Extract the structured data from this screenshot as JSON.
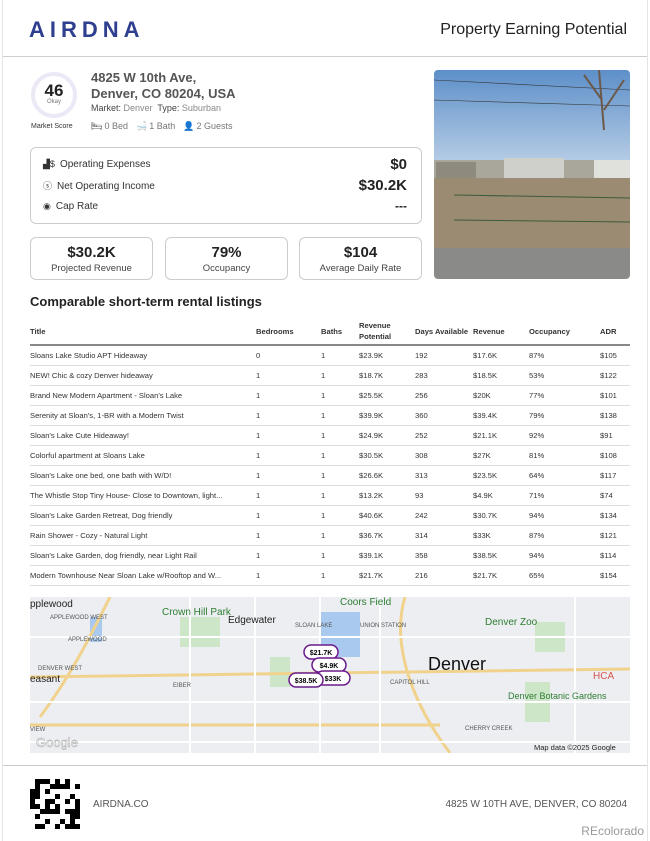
{
  "header": {
    "logo": "AIRDNA",
    "title": "Property Earning Potential"
  },
  "property": {
    "score": "46",
    "score_label": "Okay",
    "score_caption": "Market Score",
    "score_fraction": 0.46,
    "address_line1": "4825 W 10th Ave,",
    "address_line2": "Denver, CO 80204, USA",
    "market_label": "Market:",
    "market": "Denver",
    "type_label": "Type:",
    "type": "Suburban",
    "beds": "0 Bed",
    "baths": "1 Bath",
    "guests": "2 Guests"
  },
  "financials": [
    {
      "icon": "chart-dollar-icon",
      "label": "Operating Expenses",
      "value": "$0"
    },
    {
      "icon": "dollar-circle-icon",
      "label": "Net Operating Income",
      "value": "$30.2K"
    },
    {
      "icon": "cap-rate-icon",
      "label": "Cap Rate",
      "value": "---"
    }
  ],
  "kpis": [
    {
      "value": "$30.2K",
      "label": "Projected Revenue"
    },
    {
      "value": "79%",
      "label": "Occupancy"
    },
    {
      "value": "$104",
      "label": "Average Daily Rate"
    }
  ],
  "comps": {
    "title": "Comparable short-term rental listings",
    "columns": [
      "Title",
      "Bedrooms",
      "Baths",
      "Revenue Potential",
      "Days Available",
      "Revenue",
      "Occupancy",
      "ADR"
    ],
    "rows": [
      [
        "Sloans Lake Studio APT Hideaway",
        "0",
        "1",
        "$23.9K",
        "192",
        "$17.6K",
        "87%",
        "$105"
      ],
      [
        "NEW! Chic & cozy Denver hideaway",
        "1",
        "1",
        "$18.7K",
        "283",
        "$18.5K",
        "53%",
        "$122"
      ],
      [
        "Brand New Modern Apartment - Sloan's Lake",
        "1",
        "1",
        "$25.5K",
        "256",
        "$20K",
        "77%",
        "$101"
      ],
      [
        "Serenity at Sloan's, 1-BR with a Modern Twist",
        "1",
        "1",
        "$39.9K",
        "360",
        "$39.4K",
        "79%",
        "$138"
      ],
      [
        "Sloan's Lake Cute Hideaway!",
        "1",
        "1",
        "$24.9K",
        "252",
        "$21.1K",
        "92%",
        "$91"
      ],
      [
        "Colorful apartment at Sloans Lake",
        "1",
        "1",
        "$30.5K",
        "308",
        "$27K",
        "81%",
        "$108"
      ],
      [
        "Sloan's Lake one bed, one bath with W/D!",
        "1",
        "1",
        "$26.6K",
        "313",
        "$23.5K",
        "64%",
        "$117"
      ],
      [
        "The Whistle Stop Tiny House- Close to Downtown, light...",
        "1",
        "1",
        "$13.2K",
        "93",
        "$4.9K",
        "71%",
        "$74"
      ],
      [
        "Sloan's Lake Garden Retreat, Dog friendly",
        "1",
        "1",
        "$40.6K",
        "242",
        "$30.7K",
        "94%",
        "$134"
      ],
      [
        "Rain Shower - Cozy - Natural Light",
        "1",
        "1",
        "$36.7K",
        "314",
        "$33K",
        "87%",
        "$121"
      ],
      [
        "Sloan's Lake Garden, dog friendly, near Light Rail",
        "1",
        "1",
        "$39.1K",
        "358",
        "$38.5K",
        "94%",
        "$114"
      ],
      [
        "Modern Townhouse Near Sloan Lake w/Rooftop and W...",
        "1",
        "1",
        "$21.7K",
        "216",
        "$21.7K",
        "65%",
        "$154"
      ]
    ]
  },
  "map": {
    "labels": [
      "pplewood",
      "APPLEWOOD WEST",
      "Crown Hill Park",
      "APPLEWOOD",
      "Edgewater",
      "SLOAN LAKE",
      "Coors Field",
      "UNION STATION",
      "Denver Zoo",
      "DENVER WEST",
      "easant",
      "EIBER",
      "Denver",
      "CAPITOL HILL",
      "HCA",
      "Denver Botanic Gardens",
      "CHERRY CREEK",
      "VIEW"
    ],
    "markers": [
      "$21.7K",
      "$4.9K",
      "$33K",
      "$38.5K"
    ],
    "attribution": "Map data ©2025 Google",
    "google": "Google",
    "marker_color": "#6a1b8a"
  },
  "footer": {
    "site": "AIRDNA.CO",
    "address": "4825 W 10TH AVE, DENVER, CO 80204",
    "brand": "REcolorado"
  }
}
